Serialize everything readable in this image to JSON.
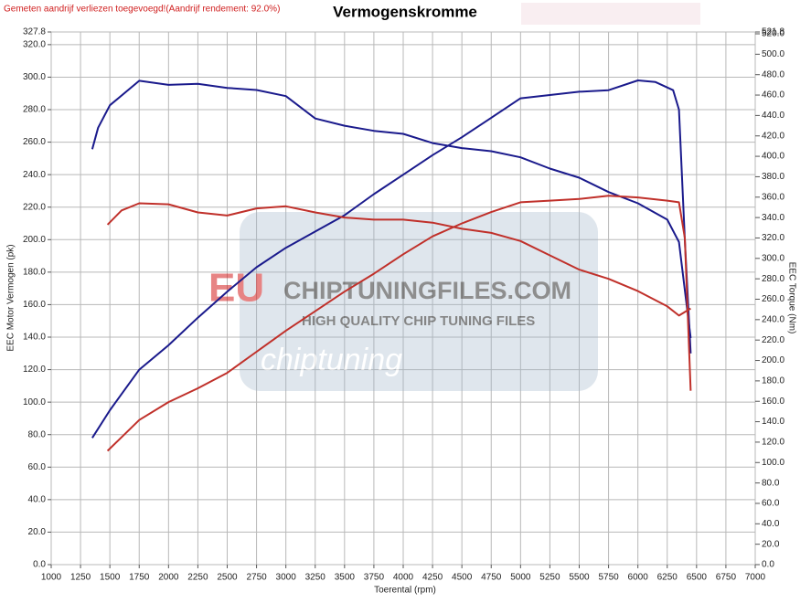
{
  "chart_data": {
    "type": "line",
    "title": "Vermogenskromme",
    "annotation": "Gemeten aandrijf verliezen toegevoegd!(Aandrijf rendement: 92.0%)",
    "xlabel": "Toerental (rpm)",
    "ylabel": "EEC Motor Vermogen (pk)",
    "y2label": "EEC Torque (Nm)",
    "watermark": {
      "logo": "EU",
      "site": "CHIPTUNINGFILES.COM",
      "tagline": "HIGH QUALITY CHIP TUNING FILES",
      "word": "chiptuning"
    },
    "grid": true,
    "xlim": [
      1000,
      7000
    ],
    "xticks": [
      1000,
      1250,
      1500,
      1750,
      2000,
      2250,
      2500,
      2750,
      3000,
      3250,
      3500,
      3750,
      4000,
      4250,
      4500,
      4750,
      5000,
      5250,
      5500,
      5750,
      6000,
      6250,
      6500,
      6750,
      7000
    ],
    "ylim": [
      0,
      327.8
    ],
    "yticks": [
      {
        "value": 0,
        "label": "0.0"
      },
      {
        "value": 20,
        "label": "20.0"
      },
      {
        "value": 40,
        "label": "40.0"
      },
      {
        "value": 60,
        "label": "60.0"
      },
      {
        "value": 80,
        "label": "80.0"
      },
      {
        "value": 100,
        "label": "100.0"
      },
      {
        "value": 120,
        "label": "120.0"
      },
      {
        "value": 140,
        "label": "140.0"
      },
      {
        "value": 160,
        "label": "160.0"
      },
      {
        "value": 180,
        "label": "180.0"
      },
      {
        "value": 200,
        "label": "200.0"
      },
      {
        "value": 220,
        "label": "220.0"
      },
      {
        "value": 240,
        "label": "240.0"
      },
      {
        "value": 260,
        "label": "260.0"
      },
      {
        "value": 280,
        "label": "280.0"
      },
      {
        "value": 300,
        "label": "300.0"
      },
      {
        "value": 320,
        "label": "320.0"
      },
      327.8
    ],
    "y2lim": [
      0,
      521.8
    ],
    "y2ticks": [
      {
        "value": 0,
        "label": "0.0"
      },
      {
        "value": 20,
        "label": "20.0"
      },
      {
        "value": 40,
        "label": "40.0"
      },
      {
        "value": 60,
        "label": "60.0"
      },
      {
        "value": 80,
        "label": "80.0"
      },
      {
        "value": 100,
        "label": "100.0"
      },
      {
        "value": 120,
        "label": "120.0"
      },
      {
        "value": 140,
        "label": "140.0"
      },
      {
        "value": 160,
        "label": "160.0"
      },
      {
        "value": 180,
        "label": "180.0"
      },
      {
        "value": 200,
        "label": "200.0"
      },
      {
        "value": 220,
        "label": "220.0"
      },
      {
        "value": 240,
        "label": "240.0"
      },
      {
        "value": 260,
        "label": "260.0"
      },
      {
        "value": 280,
        "label": "280.0"
      },
      {
        "value": 300,
        "label": "300.0"
      },
      {
        "value": 320,
        "label": "320.0"
      },
      {
        "value": 340,
        "label": "340.0"
      },
      {
        "value": 360,
        "label": "360.0"
      },
      {
        "value": 380,
        "label": "380.0"
      },
      {
        "value": 400,
        "label": "400.0"
      },
      {
        "value": 420,
        "label": "420.0"
      },
      {
        "value": 440,
        "label": "440.0"
      },
      {
        "value": 460,
        "label": "460.0"
      },
      {
        "value": 480,
        "label": "480.0"
      },
      {
        "value": 500,
        "label": "500.0"
      },
      {
        "value": 520,
        "label": "520.0"
      },
      521.8
    ],
    "series": [
      {
        "color": "#1a1a8c",
        "axis": "y",
        "x": [
          1350,
          1500,
          1750,
          2000,
          2250,
          2500,
          2750,
          3000,
          3250,
          3500,
          3750,
          4000,
          4250,
          4500,
          4750,
          5000,
          5250,
          5500,
          5750,
          6000,
          6150,
          6300,
          6350,
          6400,
          6450
        ],
        "values": [
          78,
          95,
          120,
          135,
          152,
          168,
          183,
          195,
          205,
          215,
          228,
          240,
          252,
          263,
          275,
          287,
          289,
          291,
          292,
          298,
          297,
          292,
          280,
          200,
          130
        ]
      },
      {
        "color": "#1a1a8c",
        "axis": "y2",
        "x": [
          1350,
          1400,
          1500,
          1750,
          2000,
          2250,
          2500,
          2750,
          3000,
          3250,
          3500,
          3750,
          4000,
          4250,
          4500,
          4750,
          5000,
          5250,
          5500,
          5750,
          6000,
          6250,
          6350,
          6450
        ],
        "values": [
          407,
          428,
          450,
          474,
          470,
          471,
          467,
          465,
          459,
          437,
          430,
          425,
          422,
          413,
          408,
          405,
          399,
          388,
          379,
          365,
          354,
          338,
          316,
          222
        ]
      },
      {
        "color": "#c0302a",
        "axis": "y",
        "x": [
          1480,
          1750,
          2000,
          2250,
          2500,
          2750,
          3000,
          3250,
          3500,
          3750,
          4000,
          4250,
          4500,
          4750,
          5000,
          5250,
          5500,
          5750,
          6000,
          6250,
          6350,
          6400,
          6450
        ],
        "values": [
          70,
          89,
          100,
          108.5,
          118,
          131,
          144,
          156,
          168,
          179,
          191,
          202,
          210,
          217,
          223,
          224,
          225,
          227,
          226,
          224,
          223,
          201,
          107
        ]
      },
      {
        "color": "#c0302a",
        "axis": "y2",
        "x": [
          1480,
          1600,
          1750,
          2000,
          2250,
          2500,
          2750,
          3000,
          3250,
          3500,
          3750,
          4000,
          4250,
          4500,
          4750,
          5000,
          5250,
          5500,
          5750,
          6000,
          6250,
          6350,
          6450
        ],
        "values": [
          333,
          347,
          354,
          353,
          345,
          342,
          349,
          351,
          345,
          340,
          338,
          338,
          335,
          329,
          325,
          317,
          303,
          289,
          280,
          268,
          253,
          244,
          251
        ]
      }
    ]
  }
}
